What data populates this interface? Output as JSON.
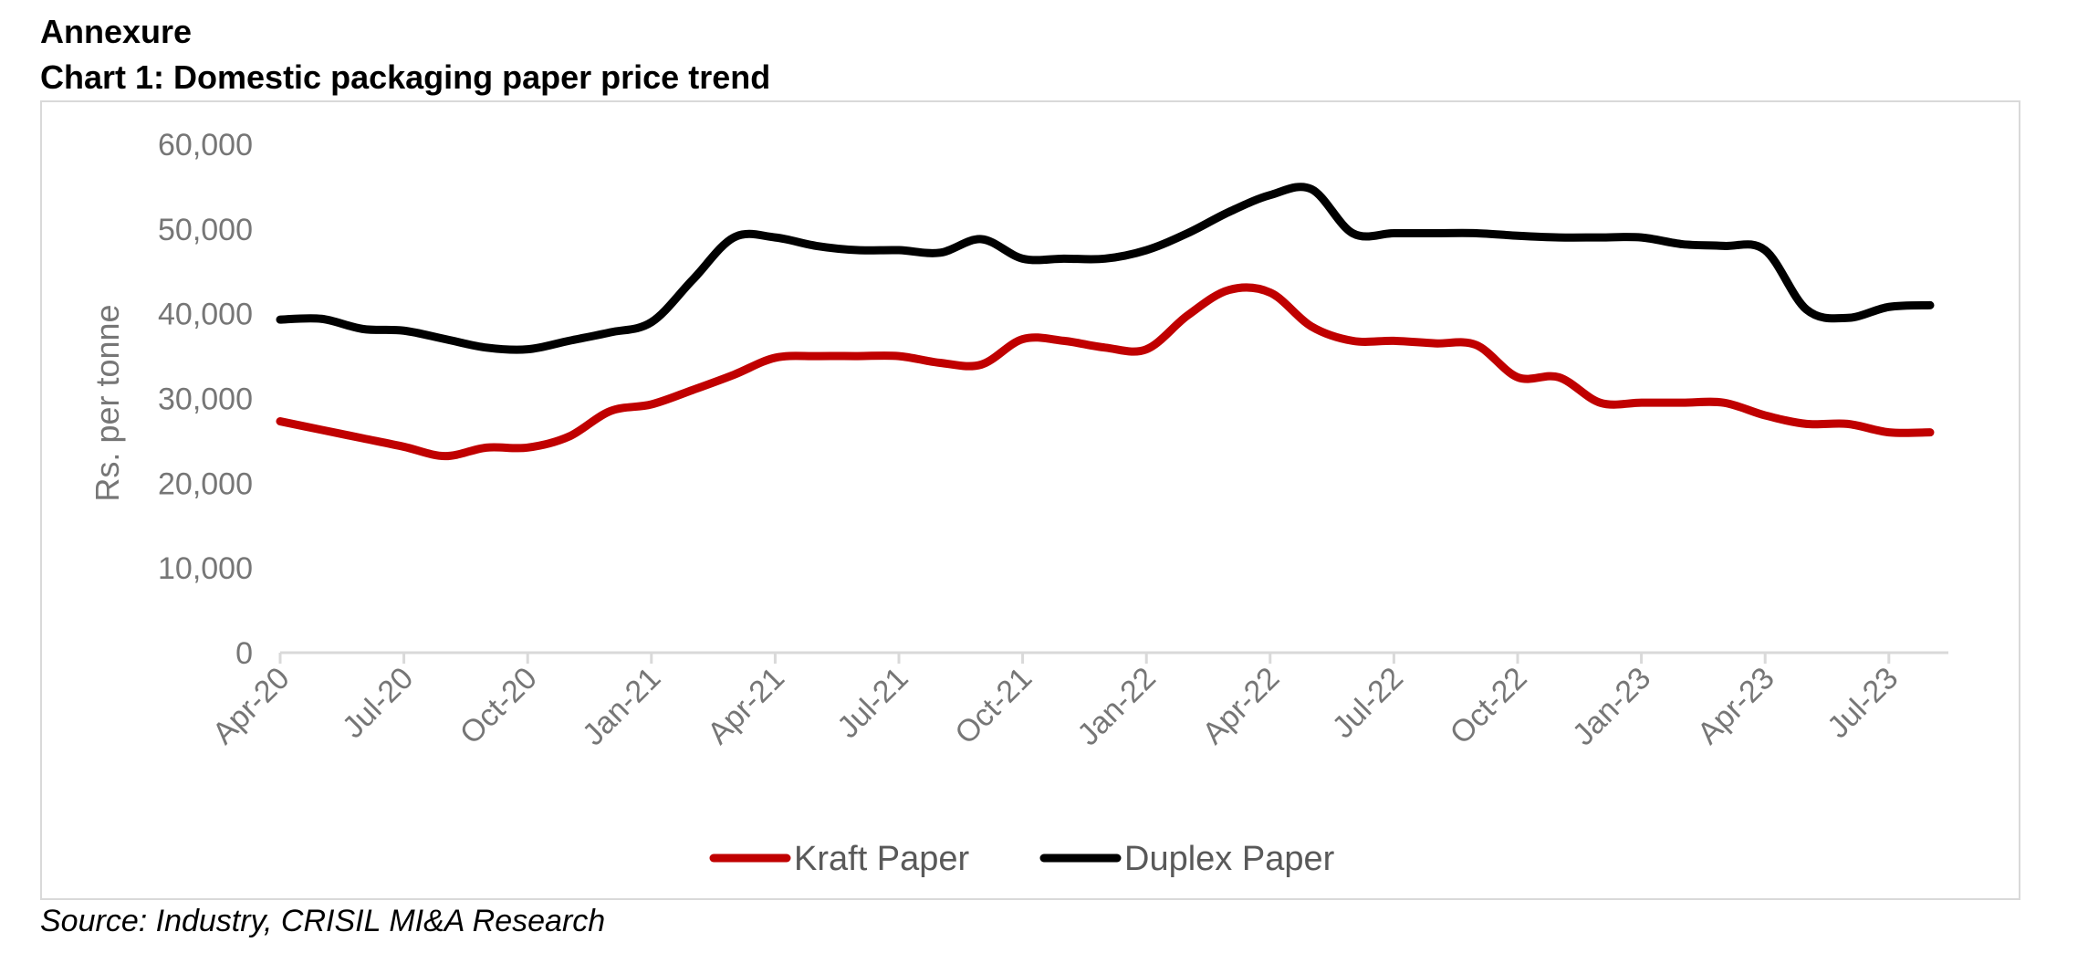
{
  "heading": "Annexure",
  "chart_title": "Chart 1: Domestic packaging paper price trend",
  "source": "Source: Industry, CRISIL MI&A Research",
  "chart_data": {
    "type": "line",
    "title": "Chart 1: Domestic packaging paper price trend",
    "xlabel": "",
    "ylabel": "Rs. per tonne",
    "ylim": [
      0,
      60000
    ],
    "yticks": [
      0,
      10000,
      20000,
      30000,
      40000,
      50000,
      60000
    ],
    "ytick_labels": [
      "0",
      "10,000",
      "20,000",
      "30,000",
      "40,000",
      "50,000",
      "60,000"
    ],
    "xtick_labels": [
      "Apr-20",
      "Jul-20",
      "Oct-20",
      "Jan-21",
      "Apr-21",
      "Jul-21",
      "Oct-21",
      "Jan-22",
      "Apr-22",
      "Jul-22",
      "Oct-22",
      "Jan-23",
      "Apr-23",
      "Jul-23"
    ],
    "x": [
      "Apr-20",
      "May-20",
      "Jun-20",
      "Jul-20",
      "Aug-20",
      "Sep-20",
      "Oct-20",
      "Nov-20",
      "Dec-20",
      "Jan-21",
      "Feb-21",
      "Mar-21",
      "Apr-21",
      "May-21",
      "Jun-21",
      "Jul-21",
      "Aug-21",
      "Sep-21",
      "Oct-21",
      "Nov-21",
      "Dec-21",
      "Jan-22",
      "Feb-22",
      "Mar-22",
      "Apr-22",
      "May-22",
      "Jun-22",
      "Jul-22",
      "Aug-22",
      "Sep-22",
      "Oct-22",
      "Nov-22",
      "Dec-22",
      "Jan-23",
      "Feb-23",
      "Mar-23",
      "Apr-23",
      "May-23",
      "Jun-23",
      "Jul-23",
      "Aug-23"
    ],
    "legend_position": "bottom",
    "grid": false,
    "series": [
      {
        "name": "Kraft Paper",
        "color": "#c00000",
        "values": [
          27300,
          26300,
          25300,
          24300,
          23200,
          24200,
          24200,
          25500,
          28500,
          29300,
          31000,
          32800,
          34800,
          35000,
          35000,
          35000,
          34200,
          34000,
          37000,
          36800,
          36000,
          35800,
          39800,
          42800,
          42500,
          38500,
          36800,
          36800,
          36500,
          36300,
          32500,
          32500,
          29500,
          29500,
          29500,
          29500,
          28000,
          27000,
          27000,
          26000,
          26000
        ]
      },
      {
        "name": "Duplex Paper",
        "color": "#000000",
        "values": [
          39300,
          39400,
          38200,
          38000,
          37000,
          36000,
          35800,
          36800,
          37800,
          39000,
          44000,
          49000,
          49000,
          48000,
          47500,
          47500,
          47200,
          48800,
          46500,
          46500,
          46500,
          47500,
          49500,
          52000,
          54000,
          54700,
          49500,
          49500,
          49500,
          49500,
          49200,
          49000,
          49000,
          49000,
          48200,
          48000,
          47500,
          40500,
          39500,
          40800,
          41000
        ]
      }
    ]
  }
}
